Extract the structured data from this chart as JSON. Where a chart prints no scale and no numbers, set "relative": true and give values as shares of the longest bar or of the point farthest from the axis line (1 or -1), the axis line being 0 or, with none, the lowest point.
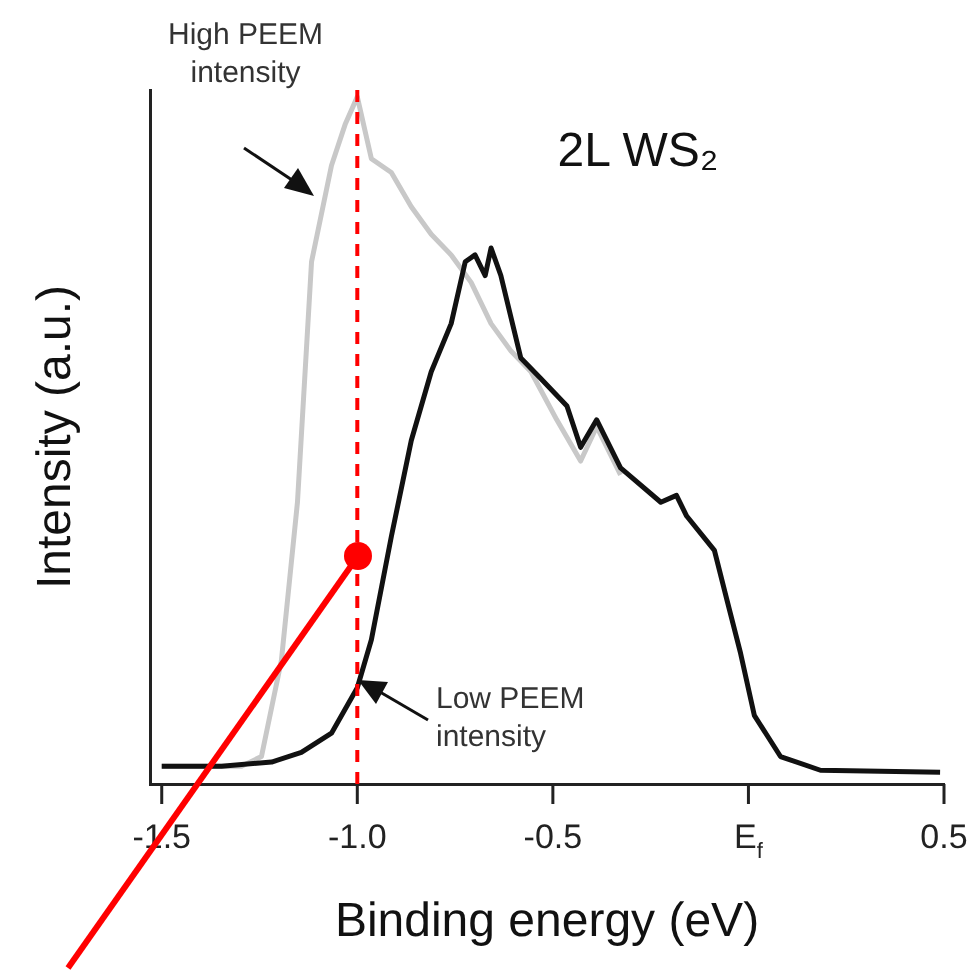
{
  "chart_data": {
    "type": "line",
    "relative": true,
    "xlabel": "Binding energy (eV)",
    "ylabel": "Intensity (a.u.)",
    "xlim": [
      -1.53,
      0.5
    ],
    "xticks": [
      -1.5,
      {
        "value": -1.0,
        "label": "-1.0"
      },
      -0.5,
      {
        "value": 0,
        "label": "E$_{f}$"
      },
      0.5
    ],
    "series": [
      {
        "name": "High PEEM intensity",
        "color": "#c8c8c8",
        "x": [
          -1.5,
          -1.296,
          -1.245,
          -1.194,
          -1.153,
          -1.117,
          -1.066,
          -1.031,
          -1.0,
          -0.964,
          -0.913,
          -0.862,
          -0.811,
          -0.76,
          -0.709,
          -0.658,
          -0.607,
          -0.556,
          -0.49,
          -0.429,
          -0.388,
          -0.327
        ],
        "values": [
          0.026,
          0.026,
          0.04,
          0.18,
          0.41,
          0.76,
          0.9,
          0.96,
          1.0,
          0.91,
          0.89,
          0.84,
          0.8,
          0.77,
          0.73,
          0.67,
          0.63,
          0.6,
          0.53,
          0.47,
          0.52,
          0.45
        ]
      },
      {
        "name": "Low PEEM intensity",
        "color": "#111111",
        "x": [
          -1.5,
          -1.347,
          -1.219,
          -1.143,
          -1.066,
          -1.0,
          -0.964,
          -0.913,
          -0.862,
          -0.811,
          -0.76,
          -0.724,
          -0.699,
          -0.673,
          -0.658,
          -0.633,
          -0.582,
          -0.531,
          -0.464,
          -0.429,
          -0.388,
          -0.327,
          -0.224,
          -0.184,
          -0.158,
          -0.087,
          -0.056,
          -0.02,
          0.015,
          0.082,
          0.184,
          0.49
        ],
        "values": [
          0.026,
          0.026,
          0.032,
          0.046,
          0.074,
          0.14,
          0.21,
          0.36,
          0.5,
          0.6,
          0.67,
          0.76,
          0.77,
          0.74,
          0.78,
          0.74,
          0.62,
          0.59,
          0.55,
          0.49,
          0.53,
          0.46,
          0.41,
          0.42,
          0.39,
          0.34,
          0.27,
          0.19,
          0.1,
          0.04,
          0.02,
          0.017
        ]
      }
    ],
    "ref_lines": [
      {
        "axis": "x",
        "value": -1.0,
        "color": "#ff0000",
        "line_style": "dashed"
      }
    ],
    "annotations": [
      "2L WS₂"
    ],
    "grid": false,
    "legend": "bottom left",
    "marker": "none",
    "line_style": "solid"
  }
}
